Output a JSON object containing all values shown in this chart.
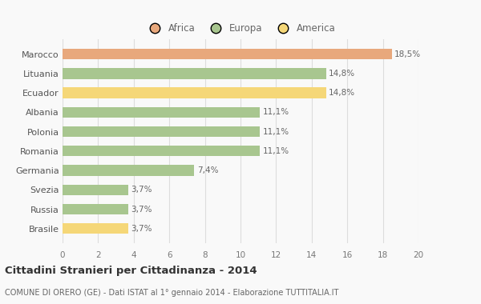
{
  "categories": [
    "Brasile",
    "Russia",
    "Svezia",
    "Germania",
    "Romania",
    "Polonia",
    "Albania",
    "Ecuador",
    "Lituania",
    "Marocco"
  ],
  "values": [
    3.7,
    3.7,
    3.7,
    7.4,
    11.1,
    11.1,
    11.1,
    14.8,
    14.8,
    18.5
  ],
  "labels": [
    "3,7%",
    "3,7%",
    "3,7%",
    "7,4%",
    "11,1%",
    "11,1%",
    "11,1%",
    "14,8%",
    "14,8%",
    "18,5%"
  ],
  "colors": [
    "#f5d778",
    "#a8c68f",
    "#a8c68f",
    "#a8c68f",
    "#a8c68f",
    "#a8c68f",
    "#a8c68f",
    "#f5d778",
    "#a8c68f",
    "#e8a87c"
  ],
  "legend": [
    {
      "label": "Africa",
      "color": "#e8a87c"
    },
    {
      "label": "Europa",
      "color": "#a8c68f"
    },
    {
      "label": "America",
      "color": "#f5d778"
    }
  ],
  "title": "Cittadini Stranieri per Cittadinanza - 2014",
  "subtitle": "COMUNE DI ORERO (GE) - Dati ISTAT al 1° gennaio 2014 - Elaborazione TUTTITALIA.IT",
  "xlim": [
    0,
    20
  ],
  "xticks": [
    0,
    2,
    4,
    6,
    8,
    10,
    12,
    14,
    16,
    18,
    20
  ],
  "background_color": "#f9f9f9",
  "grid_color": "#dddddd",
  "bar_height": 0.55,
  "title_fontsize": 9.5,
  "subtitle_fontsize": 7,
  "label_fontsize": 7.5,
  "ytick_fontsize": 8,
  "xtick_fontsize": 7.5
}
